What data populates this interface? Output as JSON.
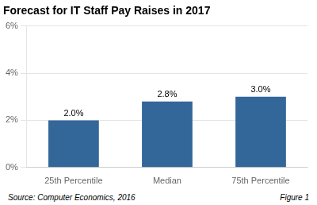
{
  "chart_data": {
    "type": "bar",
    "title": "Forecast for IT Staff Pay Raises in 2017",
    "categories": [
      "25th Percentile",
      "Median",
      "75th Percentile"
    ],
    "values": [
      2.0,
      2.8,
      3.0
    ],
    "value_labels": [
      "2.0%",
      "2.8%",
      "3.0%"
    ],
    "data_labels": true,
    "color": "#336699",
    "ylim": [
      0,
      6
    ],
    "yticks": [
      {
        "value": 0,
        "label": "0%"
      },
      {
        "value": 2,
        "label": "2%"
      },
      {
        "value": 4,
        "label": "4%"
      },
      {
        "value": 6,
        "label": "6%"
      }
    ],
    "grid": true,
    "annotations": [
      "Source: Computer Economics, 2016",
      "Figure 1"
    ]
  }
}
